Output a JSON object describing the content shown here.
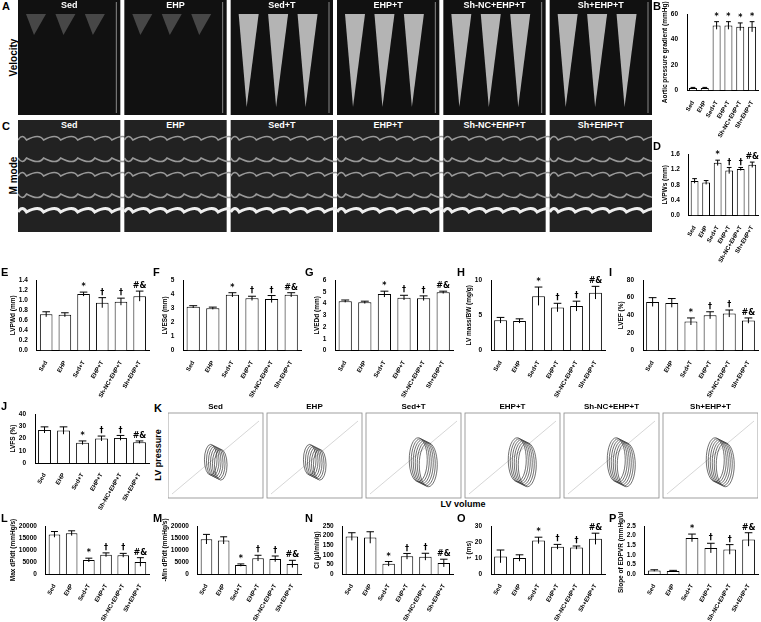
{
  "chart_data": [
    {
      "type": "bar",
      "panel": "B",
      "y_label": "Aortic pressure gradient (mmHg)",
      "categories": [
        "Sed",
        "EHP",
        "Sed+T",
        "EHP+T",
        "Sh-NC+EHP+T",
        "Sh+EHP+T"
      ],
      "values": [
        2,
        2,
        51,
        51,
        50,
        50
      ],
      "errors": [
        0.5,
        0.5,
        3,
        3,
        3,
        4
      ],
      "annotations": [
        null,
        null,
        "*",
        "*",
        "*",
        "*"
      ],
      "ylim": [
        0,
        60
      ],
      "yticks": [
        0,
        20,
        40,
        60
      ],
      "color": "#ffffff",
      "grid": false
    },
    {
      "type": "bar",
      "panel": "D",
      "y_label": "LVPWs (mm)",
      "categories": [
        "Sed",
        "EHP",
        "Sed+T",
        "EHP+T",
        "Sh-NC+EHP+T",
        "Sh+EHP+T"
      ],
      "values": [
        0.9,
        0.86,
        1.37,
        1.17,
        1.21,
        1.32
      ],
      "errors": [
        0.06,
        0.05,
        0.07,
        0.08,
        0.04,
        0.07
      ],
      "annotations": [
        null,
        null,
        "*",
        "†",
        "†",
        "#&"
      ],
      "ylim": [
        0,
        1.6
      ],
      "yticks": [
        {
          "value": 0,
          "label": "0.0"
        },
        0.4,
        0.8,
        1.2,
        1.6
      ],
      "color": "#ffffff",
      "grid": false
    },
    {
      "type": "bar",
      "panel": "E",
      "y_label": "LVPWd (mm)",
      "categories": [
        "Sed",
        "EHP",
        "Sed+T",
        "EHP+T",
        "Sh-NC+EHP+T",
        "Sh+EHP+T"
      ],
      "values": [
        0.72,
        0.71,
        1.12,
        0.95,
        0.97,
        1.08
      ],
      "errors": [
        0.05,
        0.04,
        0.04,
        0.1,
        0.07,
        0.1
      ],
      "annotations": [
        null,
        null,
        "*",
        "†",
        "†",
        "#&"
      ],
      "ylim": [
        0,
        1.4
      ],
      "yticks": [
        {
          "value": 0,
          "label": "0.0"
        },
        0.2,
        0.4,
        0.6,
        0.8,
        {
          "value": 1,
          "label": "1.0"
        },
        1.2,
        1.4
      ],
      "color": "#ffffff",
      "grid": false
    },
    {
      "type": "bar",
      "panel": "F",
      "y_label": "LVESd (mm)",
      "categories": [
        "Sed",
        "EHP",
        "Sed+T",
        "EHP+T",
        "Sh-NC+EHP+T",
        "Sh+EHP+T"
      ],
      "values": [
        3.1,
        3.0,
        3.95,
        3.7,
        3.65,
        3.95
      ],
      "errors": [
        0.08,
        0.08,
        0.15,
        0.15,
        0.25,
        0.15
      ],
      "annotations": [
        null,
        null,
        "*",
        "†",
        "†",
        "#&"
      ],
      "ylim": [
        0,
        5
      ],
      "yticks": [
        0,
        1,
        2,
        3,
        4,
        5
      ],
      "color": "#ffffff",
      "grid": false
    },
    {
      "type": "bar",
      "panel": "G",
      "y_label": "LVEDd (mm)",
      "categories": [
        "Sed",
        "EHP",
        "Sed+T",
        "EHP+T",
        "Sh-NC+EHP+T",
        "Sh+EHP+T"
      ],
      "values": [
        4.2,
        4.1,
        4.8,
        4.5,
        4.45,
        4.95
      ],
      "errors": [
        0.1,
        0.1,
        0.25,
        0.2,
        0.2,
        0.1
      ],
      "annotations": [
        null,
        null,
        "*",
        "†",
        "†",
        "#&"
      ],
      "ylim": [
        0,
        6
      ],
      "yticks": [
        0,
        1,
        2,
        3,
        4,
        5,
        6
      ],
      "color": "#ffffff",
      "grid": false
    },
    {
      "type": "bar",
      "panel": "H",
      "y_label": "LV mass/BW (mg/g)",
      "categories": [
        "Sed",
        "EHP",
        "Sed+T",
        "EHP+T",
        "Sh-NC+EHP+T",
        "Sh+EHP+T"
      ],
      "values": [
        4.3,
        4.2,
        7.7,
        6.1,
        6.3,
        8.2
      ],
      "errors": [
        0.4,
        0.3,
        1.3,
        0.6,
        0.7,
        0.9
      ],
      "annotations": [
        null,
        null,
        "*",
        "†",
        "†",
        "#&"
      ],
      "ylim": [
        0,
        10
      ],
      "yticks": [
        0,
        5,
        10
      ],
      "color": "#ffffff",
      "grid": false
    },
    {
      "type": "bar",
      "panel": "I",
      "y_label": "LVEF (%)",
      "categories": [
        "Sed",
        "EHP",
        "Sed+T",
        "EHP+T",
        "Sh-NC+EHP+T",
        "Sh+EHP+T"
      ],
      "values": [
        55,
        54,
        33,
        40,
        42,
        34
      ],
      "errors": [
        5,
        5,
        4,
        4,
        4,
        3
      ],
      "annotations": [
        null,
        null,
        "*",
        "†",
        "†",
        "#&"
      ],
      "ylim": [
        0,
        80
      ],
      "yticks": [
        0,
        20,
        40,
        60,
        80
      ],
      "color": "#ffffff",
      "grid": false
    },
    {
      "type": "bar",
      "panel": "J",
      "y_label": "LVFS (%)",
      "categories": [
        "Sed",
        "EHP",
        "Sed+T",
        "EHP+T",
        "Sh-NC+EHP+T",
        "Sh+EHP+T"
      ],
      "values": [
        27,
        26.5,
        16.5,
        20,
        20.5,
        17
      ],
      "errors": [
        2.5,
        3,
        1.5,
        2,
        2,
        1
      ],
      "annotations": [
        null,
        null,
        "*",
        "†",
        "†",
        "#&"
      ],
      "ylim": [
        0,
        40
      ],
      "yticks": [
        0,
        10,
        20,
        30,
        40
      ],
      "color": "#ffffff",
      "grid": false
    },
    {
      "type": "bar",
      "panel": "L",
      "y_label": "Max dP/dt (mmHg/s)",
      "categories": [
        "Sed",
        "EHP",
        "Sed+T",
        "EHP+T",
        "Sh-NC+EHP+T",
        "Sh+EHP+T"
      ],
      "values": [
        16500,
        17000,
        5800,
        8000,
        7800,
        5000
      ],
      "errors": [
        1200,
        1000,
        800,
        800,
        800,
        1800
      ],
      "annotations": [
        null,
        null,
        "*",
        "†",
        "†",
        "#&"
      ],
      "ylim": [
        0,
        20000
      ],
      "yticks": [
        0,
        5000,
        10000,
        15000,
        20000
      ],
      "color": "#ffffff",
      "grid": false
    },
    {
      "type": "bar",
      "panel": "M",
      "y_label": "-Min dP/dt (mmHg/s)",
      "categories": [
        "Sed",
        "EHP",
        "Sed+T",
        "EHP+T",
        "Sh-NC+EHP+T",
        "Sh+EHP+T"
      ],
      "values": [
        14500,
        14000,
        3700,
        6600,
        6300,
        4200
      ],
      "errors": [
        2000,
        1500,
        500,
        1200,
        1200,
        1500
      ],
      "annotations": [
        null,
        null,
        "*",
        "†",
        "†",
        "#&"
      ],
      "ylim": [
        0,
        20000
      ],
      "yticks": [
        0,
        5000,
        10000,
        15000,
        20000
      ],
      "color": "#ffffff",
      "grid": false
    },
    {
      "type": "bar",
      "panel": "N",
      "y_label": "CI (µl/min/g)",
      "categories": [
        "Sed",
        "EHP",
        "Sed+T",
        "EHP+T",
        "Sh-NC+EHP+T",
        "Sh+EHP+T"
      ],
      "values": [
        195,
        190,
        53,
        92,
        90,
        57
      ],
      "errors": [
        20,
        30,
        12,
        15,
        18,
        20
      ],
      "annotations": [
        null,
        null,
        "*",
        "†",
        "†",
        "#&"
      ],
      "ylim": [
        0,
        250
      ],
      "yticks": [
        0,
        50,
        100,
        150,
        200,
        250
      ],
      "color": "#ffffff",
      "grid": false
    },
    {
      "type": "bar",
      "panel": "O",
      "y_label": "τ (ms)",
      "categories": [
        "Sed",
        "EHP",
        "Sed+T",
        "EHP+T",
        "Sh-NC+EHP+T",
        "Sh+EHP+T"
      ],
      "values": [
        11,
        10,
        21,
        17,
        16.5,
        22
      ],
      "errors": [
        4,
        2,
        2,
        1.5,
        1,
        3.5
      ],
      "annotations": [
        null,
        null,
        "*",
        "†",
        "†",
        "#&"
      ],
      "ylim": [
        0,
        30
      ],
      "yticks": [
        0,
        10,
        20,
        30
      ],
      "color": "#ffffff",
      "grid": false
    },
    {
      "type": "bar",
      "panel": "P",
      "y_label": "Slope of EDPVR (mmHg/uL)",
      "categories": [
        "Sed",
        "EHP",
        "Sed+T",
        "EHP+T",
        "Sh-NC+EHP+T",
        "Sh+EHP+T"
      ],
      "values": [
        0.18,
        0.15,
        1.88,
        1.35,
        1.28,
        1.8
      ],
      "errors": [
        0.04,
        0.04,
        0.2,
        0.25,
        0.25,
        0.35
      ],
      "annotations": [
        null,
        null,
        "*",
        "†",
        "†",
        "#&"
      ],
      "ylim": [
        0,
        2.5
      ],
      "yticks": [
        {
          "value": 0,
          "label": "0.0"
        },
        0.5,
        {
          "value": 1,
          "label": "1.0"
        },
        1.5,
        {
          "value": 2,
          "label": "2.0"
        },
        2.5
      ],
      "color": "#ffffff",
      "grid": false
    }
  ],
  "image_panels": [
    {
      "panel": "A",
      "row_label": "Velocity",
      "groups": [
        "Sed",
        "EHP",
        "Sed+T",
        "EHP+T",
        "Sh-NC+EHP+T",
        "Sh+EHP+T"
      ]
    },
    {
      "panel": "C",
      "row_label": "M mode",
      "groups": [
        "Sed",
        "EHP",
        "Sed+T",
        "EHP+T",
        "Sh-NC+EHP+T",
        "Sh+EHP+T"
      ]
    },
    {
      "panel": "K",
      "row_label": "LV pressure",
      "x_label": "LV volume",
      "groups": [
        "Sed",
        "EHP",
        "Sed+T",
        "EHP+T",
        "Sh-NC+EHP+T",
        "Sh+EHP+T"
      ]
    }
  ]
}
